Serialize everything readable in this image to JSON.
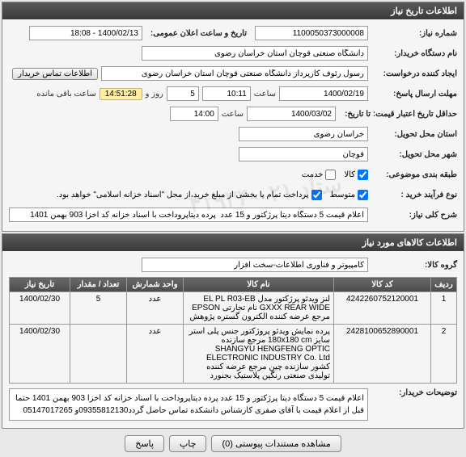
{
  "panels": {
    "info_title": "اطلاعات تاریخ نیاز",
    "items_title": "اطلاعات کالاهای مورد نیاز"
  },
  "labels": {
    "need_no": "شماره نیاز:",
    "announce_time": "تاریخ و ساعت اعلان عمومی:",
    "buyer_org": "نام دستگاه خریدار:",
    "creator": "ایجاد کننده درخواست:",
    "contact": "اطلاعات تماس خریدار",
    "deadline_ans": "مهلت ارسال پاسخ:",
    "hour": "ساعت",
    "day_and": "روز و",
    "remaining": "ساعت باقی مانده",
    "price_valid": "حداقل تاریخ اعتبار قیمت: تا تاریخ:",
    "delivery_prov": "استان محل تحویل:",
    "delivery_city": "شهر محل تحویل:",
    "budget_type": "طبقه بندی موضوعی:",
    "goods": "کالا",
    "service": "خدمت",
    "process_type": "نوع فرآیند خرید :",
    "med": "متوسط",
    "partial_note": "پرداخت تمام یا بخشی از مبلغ خرید،از محل \"اسناد خزانه اسلامی\" خواهد بود.",
    "subject": "شرح کلی نیاز:",
    "goods_group": "گروه کالا:",
    "buyer_desc": "توضیحات خریدار:"
  },
  "values": {
    "need_no": "1100050373000008",
    "announce_time": "1400/02/13 - 18:08",
    "buyer_org": "دانشگاه صنعتی قوچان استان خراسان رضوی",
    "creator": "رسول رئوف کارپرداز دانشگاه صنعتی قوچان استان خراسان رضوی",
    "deadline_date": "1400/02/19",
    "deadline_hour": "10:11",
    "deadline_days": "5",
    "countdown": "14:51:28",
    "price_valid_date": "1400/03/02",
    "price_valid_hour": "14:00",
    "province": "خراسان رضوی",
    "city": "قوچان",
    "subject": "اعلام قیمت 5 دستگاه دیتا پرژکتور و 15 عدد  پرده دیتاپروداخت با اسناد خزانه کد اخزا 903 بهمن 1401",
    "goods_group": "کامپیوتر و فناوری اطلاعات-سخت افزار",
    "buyer_desc": "اعلام قیمت 5 دستگاه دیتا پرژکتور و 15 عدد  پرده دیتاپروداخت با اسناد خزانه کد اخزا 903 بهمن 1401 حتما قبل از اعلام قیمت با آقای صفری کارشناس دانشکده تماس حاصل گردد09355812130و 05147017265"
  },
  "checkboxes": {
    "goods": true,
    "service": false,
    "med": true,
    "partial": true
  },
  "table": {
    "headers": {
      "row": "ردیف",
      "code": "کد کالا",
      "name": "نام کالا",
      "unit": "واحد شمارش",
      "qty": "تعداد / مقدار",
      "date": "تاریخ نیاز"
    },
    "rows": [
      {
        "idx": "1",
        "code": "4242260752120001",
        "name": "لنز ویدئو پرژکتور مدل EL PL R03-EB GXXX REAR WIDE نام تجارتی EPSON مرجع عرضه کننده الکترون گستره پژوهش",
        "unit": "عدد",
        "qty": "5",
        "date": "1400/02/30"
      },
      {
        "idx": "2",
        "code": "2428100652890001",
        "name": "پرده نمایش ویدئو پروژکتور جنس پلی استر سایز 180x180 cm مرجع سازنده SHANGYU HENGFENG OPTIC ELECTRONIC INDUSTRY Co. Ltd کشور سازنده چین مرجع عرضه کننده تولیدی صنعتی رنگین پلاستیک بجنورد",
        "unit": "عدد",
        "qty": "",
        "date": "1400/02/30"
      }
    ]
  },
  "footer": {
    "attachments": "مشاهده مستندات پیوستی (0)",
    "print": "چاپ",
    "answer": "پاسخ"
  },
  "watermark": "ستاد ۰۲۱-۴۱۹۳۴"
}
